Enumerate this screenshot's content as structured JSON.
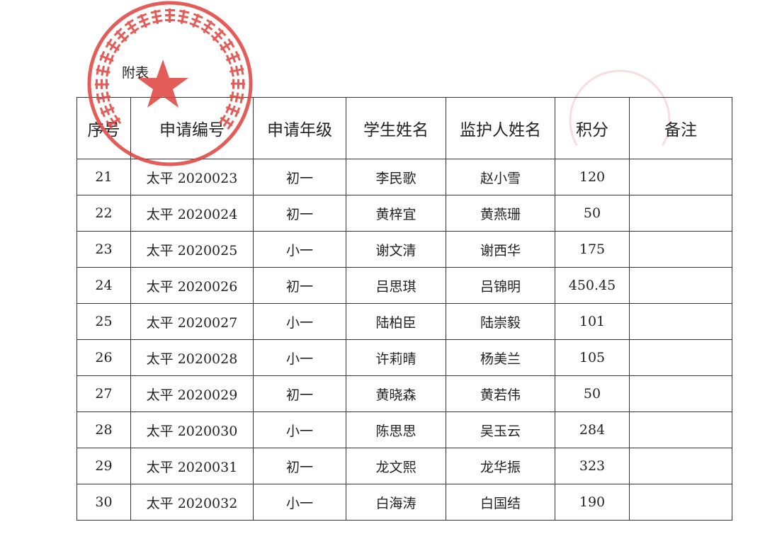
{
  "caption": "附表",
  "stamp": {
    "text": "佛山市南海区大沥镇流动人口和出租屋管理服务中心",
    "color": "#e0403c"
  },
  "table": {
    "headers": [
      "序号",
      "申请编号",
      "申请年级",
      "学生姓名",
      "监护人姓名",
      "积分",
      "备注"
    ],
    "rows": [
      [
        "21",
        "太平 2020023",
        "初一",
        "李民歌",
        "赵小雪",
        "120",
        ""
      ],
      [
        "22",
        "太平 2020024",
        "初一",
        "黄梓宜",
        "黄燕珊",
        "50",
        ""
      ],
      [
        "23",
        "太平 2020025",
        "小一",
        "谢文清",
        "谢西华",
        "175",
        ""
      ],
      [
        "24",
        "太平 2020026",
        "初一",
        "吕思琪",
        "吕锦明",
        "450.45",
        ""
      ],
      [
        "25",
        "太平 2020027",
        "小一",
        "陆柏臣",
        "陆崇毅",
        "101",
        ""
      ],
      [
        "26",
        "太平 2020028",
        "小一",
        "许莉晴",
        "杨美兰",
        "105",
        ""
      ],
      [
        "27",
        "太平 2020029",
        "初一",
        "黄晓森",
        "黄若伟",
        "50",
        ""
      ],
      [
        "28",
        "太平 2020030",
        "小一",
        "陈思思",
        "吴玉云",
        "284",
        ""
      ],
      [
        "29",
        "太平 2020031",
        "初一",
        "龙文熙",
        "龙华振",
        "323",
        ""
      ],
      [
        "30",
        "太平 2020032",
        "小一",
        "白海涛",
        "白国结",
        "190",
        ""
      ]
    ]
  }
}
